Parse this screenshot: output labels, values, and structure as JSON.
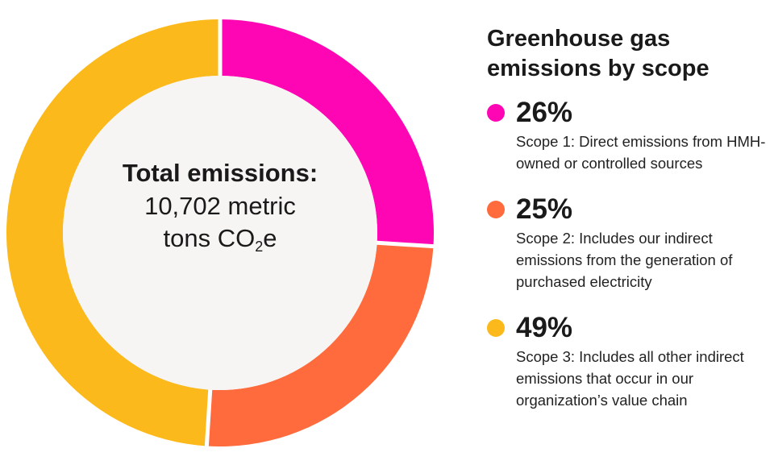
{
  "chart_data": {
    "type": "pie",
    "title": "Greenhouse gas emissions by scope",
    "center_label": {
      "title": "Total emissions:",
      "value_main": "10,702 metric tons CO",
      "value_sub": "2",
      "value_tail": "e"
    },
    "slices": [
      {
        "percent_label": "26%",
        "value": 26,
        "color": "#ff06b5",
        "description": "Scope 1: Direct emissions from HMH-owned or controlled sources"
      },
      {
        "percent_label": "25%",
        "value": 25,
        "color": "#ff6b3d",
        "description": "Scope 2: Includes our indirect emissions from the generation of purchased electricity"
      },
      {
        "percent_label": "49%",
        "value": 49,
        "color": "#fbb91c",
        "description": "Scope 3: Includes all other indirect emissions that occur in our organization’s value chain"
      }
    ],
    "inner_fill": "#f7f5f3"
  }
}
